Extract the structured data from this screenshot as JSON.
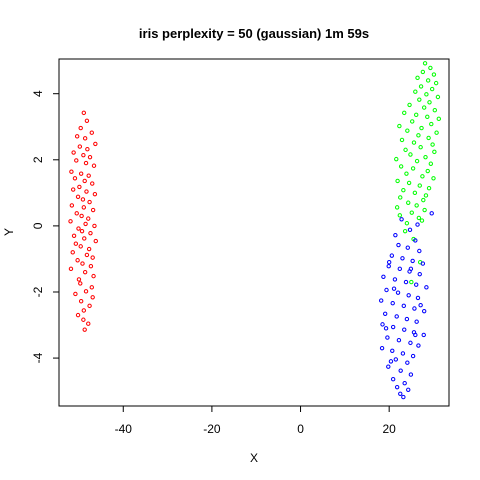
{
  "chart_data": {
    "type": "scatter",
    "title": "iris perplexity = 50 (gaussian) 1m 59s",
    "xlabel": "X",
    "ylabel": "Y",
    "xlim": [
      -54.5,
      33.5
    ],
    "ylim": [
      -5.45,
      5.05
    ],
    "xticks": [
      -40,
      -20,
      0,
      20
    ],
    "yticks": [
      -4,
      -2,
      0,
      2,
      4
    ],
    "grid": false,
    "legend": "none",
    "series": [
      {
        "color": "#ff0000",
        "points": [
          [
            -48.9,
            3.42
          ],
          [
            -48.2,
            3.18
          ],
          [
            -49.6,
            2.96
          ],
          [
            -47.1,
            2.82
          ],
          [
            -50.4,
            2.71
          ],
          [
            -48.6,
            2.65
          ],
          [
            -46.3,
            2.48
          ],
          [
            -49.8,
            2.4
          ],
          [
            -48.1,
            2.32
          ],
          [
            -51.2,
            2.22
          ],
          [
            -49.0,
            2.14
          ],
          [
            -47.5,
            2.08
          ],
          [
            -50.6,
            1.98
          ],
          [
            -48.4,
            1.9
          ],
          [
            -46.6,
            1.82
          ],
          [
            -51.7,
            1.64
          ],
          [
            -49.5,
            1.58
          ],
          [
            -47.8,
            1.52
          ],
          [
            -50.9,
            1.44
          ],
          [
            -48.7,
            1.36
          ],
          [
            -47.0,
            1.28
          ],
          [
            -49.9,
            1.18
          ],
          [
            -51.3,
            1.1
          ],
          [
            -48.3,
            1.04
          ],
          [
            -46.4,
            0.96
          ],
          [
            -50.2,
            0.88
          ],
          [
            -49.1,
            0.8
          ],
          [
            -47.6,
            0.72
          ],
          [
            -51.6,
            0.62
          ],
          [
            -48.9,
            0.56
          ],
          [
            -46.8,
            0.48
          ],
          [
            -50.5,
            0.38
          ],
          [
            -49.4,
            0.3
          ],
          [
            -47.9,
            0.22
          ],
          [
            -51.9,
            0.14
          ],
          [
            -48.5,
            0.06
          ],
          [
            -46.5,
            0.0
          ],
          [
            -50.1,
            -0.08
          ],
          [
            -49.3,
            -0.16
          ],
          [
            -47.4,
            -0.22
          ],
          [
            -51.1,
            -0.3
          ],
          [
            -48.8,
            -0.38
          ],
          [
            -46.2,
            -0.46
          ],
          [
            -50.7,
            -0.54
          ],
          [
            -49.6,
            -0.62
          ],
          [
            -47.7,
            -0.7
          ],
          [
            -51.4,
            -0.8
          ],
          [
            -48.2,
            -0.88
          ],
          [
            -46.9,
            -0.96
          ],
          [
            -50.3,
            -1.04
          ],
          [
            -49.2,
            -1.14
          ],
          [
            -47.3,
            -1.22
          ],
          [
            -51.8,
            -1.3
          ],
          [
            -48.6,
            -1.4
          ],
          [
            -46.7,
            -1.52
          ],
          [
            -50.0,
            -1.62
          ],
          [
            -49.7,
            -1.74
          ],
          [
            -47.1,
            -1.86
          ],
          [
            -48.4,
            -1.98
          ],
          [
            -50.8,
            -2.06
          ],
          [
            -46.9,
            -2.16
          ],
          [
            -49.5,
            -2.28
          ],
          [
            -47.6,
            -2.42
          ],
          [
            -48.9,
            -2.56
          ],
          [
            -50.2,
            -2.7
          ],
          [
            -49.0,
            -2.84
          ],
          [
            -47.9,
            -2.96
          ],
          [
            -48.7,
            -3.14
          ]
        ]
      },
      {
        "color": "#00ff00",
        "points": [
          [
            28.1,
            4.92
          ],
          [
            29.3,
            4.78
          ],
          [
            27.6,
            4.66
          ],
          [
            30.1,
            4.58
          ],
          [
            26.4,
            4.48
          ],
          [
            28.8,
            4.4
          ],
          [
            30.6,
            4.32
          ],
          [
            27.2,
            4.22
          ],
          [
            29.7,
            4.14
          ],
          [
            25.9,
            4.06
          ],
          [
            28.4,
            3.98
          ],
          [
            31.0,
            3.9
          ],
          [
            26.8,
            3.82
          ],
          [
            29.1,
            3.74
          ],
          [
            24.6,
            3.66
          ],
          [
            27.9,
            3.58
          ],
          [
            30.3,
            3.5
          ],
          [
            23.4,
            3.42
          ],
          [
            26.1,
            3.36
          ],
          [
            28.6,
            3.3
          ],
          [
            31.2,
            3.24
          ],
          [
            25.2,
            3.16
          ],
          [
            29.5,
            3.08
          ],
          [
            22.3,
            3.02
          ],
          [
            27.3,
            2.96
          ],
          [
            24.1,
            2.88
          ],
          [
            30.7,
            2.82
          ],
          [
            26.6,
            2.74
          ],
          [
            28.9,
            2.66
          ],
          [
            22.9,
            2.6
          ],
          [
            25.6,
            2.52
          ],
          [
            29.8,
            2.46
          ],
          [
            27.1,
            2.38
          ],
          [
            23.7,
            2.3
          ],
          [
            30.2,
            2.24
          ],
          [
            24.8,
            2.16
          ],
          [
            28.2,
            2.08
          ],
          [
            21.6,
            2.02
          ],
          [
            26.3,
            1.96
          ],
          [
            29.4,
            1.88
          ],
          [
            22.7,
            1.8
          ],
          [
            25.4,
            1.74
          ],
          [
            28.7,
            1.66
          ],
          [
            23.9,
            1.58
          ],
          [
            27.5,
            1.5
          ],
          [
            30.0,
            1.44
          ],
          [
            21.9,
            1.36
          ],
          [
            24.5,
            1.3
          ],
          [
            26.9,
            1.22
          ],
          [
            29.0,
            1.14
          ],
          [
            23.2,
            1.08
          ],
          [
            25.8,
            1.0
          ],
          [
            28.3,
            0.92
          ],
          [
            22.5,
            0.86
          ],
          [
            27.7,
            0.78
          ],
          [
            24.3,
            0.7
          ],
          [
            26.2,
            0.62
          ],
          [
            21.8,
            0.56
          ],
          [
            28.0,
            0.48
          ],
          [
            25.1,
            0.4
          ],
          [
            22.4,
            0.32
          ],
          [
            26.7,
            0.24
          ],
          [
            27.4,
            0.16
          ],
          [
            24.0,
            0.08
          ],
          [
            23.6,
            -0.16
          ],
          [
            25.5,
            -0.4
          ],
          [
            27.0,
            -1.1
          ],
          [
            25.0,
            -1.7
          ]
        ]
      },
      {
        "color": "#0000ff",
        "points": [
          [
            29.6,
            0.38
          ],
          [
            22.8,
            0.2
          ],
          [
            26.4,
            0.04
          ],
          [
            24.7,
            -0.12
          ],
          [
            21.4,
            -0.28
          ],
          [
            25.9,
            -0.44
          ],
          [
            22.1,
            -0.58
          ],
          [
            24.2,
            -0.66
          ],
          [
            26.8,
            -0.76
          ],
          [
            20.6,
            -0.9
          ],
          [
            23.0,
            -0.98
          ],
          [
            25.3,
            -1.06
          ],
          [
            27.6,
            -1.14
          ],
          [
            19.9,
            -1.22
          ],
          [
            22.4,
            -1.3
          ],
          [
            24.6,
            -1.38
          ],
          [
            26.9,
            -1.46
          ],
          [
            18.7,
            -1.54
          ],
          [
            21.3,
            -1.62
          ],
          [
            23.8,
            -1.7
          ],
          [
            26.1,
            -1.78
          ],
          [
            28.4,
            -1.86
          ],
          [
            19.4,
            -1.94
          ],
          [
            22.0,
            -2.02
          ],
          [
            24.4,
            -2.1
          ],
          [
            26.5,
            -2.18
          ],
          [
            18.2,
            -2.26
          ],
          [
            20.8,
            -2.34
          ],
          [
            23.3,
            -2.42
          ],
          [
            25.7,
            -2.5
          ],
          [
            27.9,
            -2.58
          ],
          [
            19.1,
            -2.66
          ],
          [
            21.7,
            -2.74
          ],
          [
            24.0,
            -2.82
          ],
          [
            26.2,
            -2.9
          ],
          [
            18.5,
            -2.98
          ],
          [
            20.9,
            -3.06
          ],
          [
            23.4,
            -3.14
          ],
          [
            25.6,
            -3.22
          ],
          [
            27.8,
            -3.3
          ],
          [
            19.6,
            -3.38
          ],
          [
            22.2,
            -3.46
          ],
          [
            24.8,
            -3.54
          ],
          [
            26.6,
            -3.62
          ],
          [
            18.4,
            -3.7
          ],
          [
            20.7,
            -3.78
          ],
          [
            23.1,
            -3.86
          ],
          [
            25.4,
            -3.94
          ],
          [
            21.5,
            -4.04
          ],
          [
            24.1,
            -4.14
          ],
          [
            19.8,
            -4.26
          ],
          [
            22.6,
            -4.38
          ],
          [
            24.9,
            -4.5
          ],
          [
            20.9,
            -4.64
          ],
          [
            23.5,
            -4.76
          ],
          [
            21.8,
            -4.88
          ],
          [
            24.3,
            -4.96
          ],
          [
            22.5,
            -5.08
          ],
          [
            23.2,
            -5.18
          ],
          [
            20.4,
            -4.1
          ],
          [
            25.9,
            -3.3
          ],
          [
            19.3,
            -3.1
          ],
          [
            27.1,
            -2.4
          ],
          [
            21.1,
            -1.9
          ],
          [
            24.9,
            -1.3
          ],
          [
            20.0,
            -1.1
          ]
        ]
      }
    ]
  }
}
